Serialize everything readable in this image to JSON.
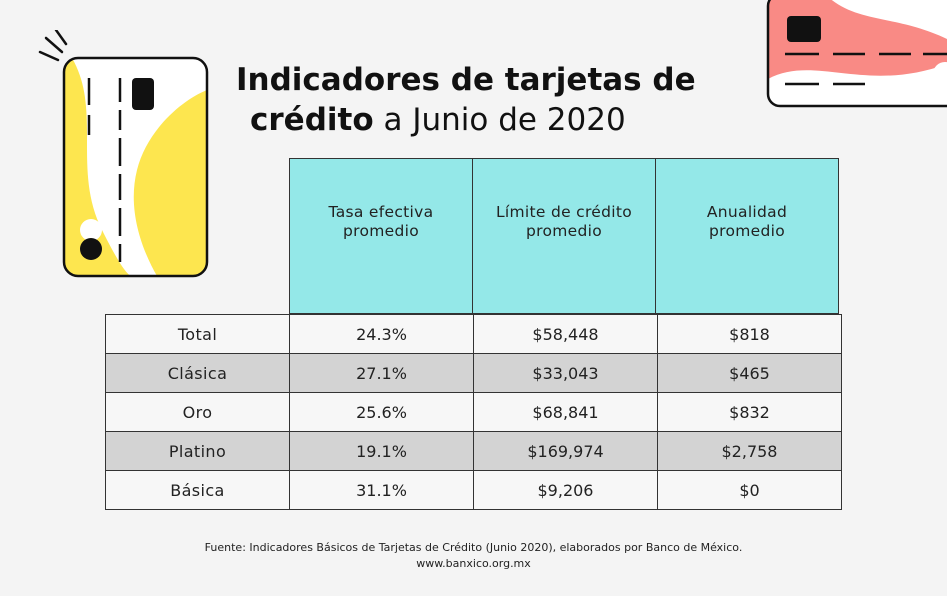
{
  "title": {
    "line1": "Indicadores de tarjetas de",
    "line2_bold": "crédito",
    "line2_rest": " a Junio de 2020"
  },
  "table": {
    "headers": [
      "Tasa efectiva promedio",
      "Límite de crédito promedio",
      "Anualidad promedio"
    ],
    "rows": [
      {
        "label": "Total",
        "tasa": "24.3%",
        "limite": "$58,448",
        "anualidad": "$818"
      },
      {
        "label": "Clásica",
        "tasa": "27.1%",
        "limite": "$33,043",
        "anualidad": "$465"
      },
      {
        "label": "Oro",
        "tasa": "25.6%",
        "limite": "$68,841",
        "anualidad": "$832"
      },
      {
        "label": "Platino",
        "tasa": "19.1%",
        "limite": "$169,974",
        "anualidad": "$2,758"
      },
      {
        "label": "Básica",
        "tasa": "31.1%",
        "limite": "$9,206",
        "anualidad": "$0"
      }
    ]
  },
  "footer": {
    "source": "Fuente: Indicadores Básicos de Tarjetas de Crédito (Junio 2020), elaborados por Banco de México.",
    "url": "www.banxico.org.mx"
  },
  "colors": {
    "header_fill": "#94e8e8",
    "shaded_row": "#d3d3d3",
    "yellow_card": "#fde64f",
    "pink_card": "#f98a85"
  },
  "icons": [
    "credit-card-yellow-icon",
    "credit-card-pink-icon"
  ]
}
